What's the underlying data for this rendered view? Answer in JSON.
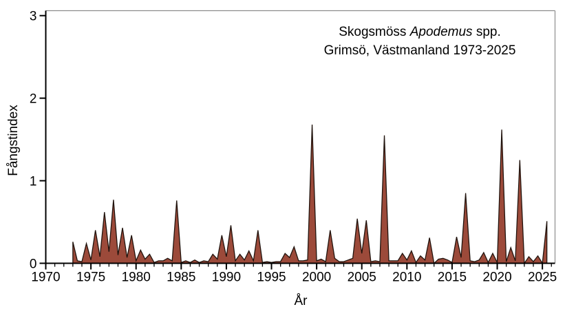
{
  "title": {
    "line1_prefix": "Skogsmöss",
    "line1_italic": "Apodemus",
    "line1_suffix": "spp.",
    "line2": "Grimsö, Västmanland 1973-2025"
  },
  "chart_data": {
    "type": "area",
    "title": "Skogsmöss Apodemus spp. Grimsö, Västmanland 1973-2025",
    "xlabel": "År",
    "ylabel": "Fångstindex",
    "xlim": [
      1970,
      2026.4
    ],
    "ylim": [
      0,
      3.06
    ],
    "x_major_ticks": [
      1970,
      1975,
      1980,
      1985,
      1990,
      1995,
      2000,
      2005,
      2010,
      2015,
      2020,
      2025
    ],
    "x_minor_tick_interval": 1,
    "y_ticks": [
      0,
      1,
      2,
      3
    ],
    "grid": false,
    "legend": "none",
    "fill_color": "#9C4A3A",
    "line_color": "#20130D",
    "axis_color": "#000000",
    "frame_color": "#8C8C8C",
    "note": "Two trapping sessions per year plotted at year +0.0 and +0.5; values read from pixels",
    "x_start": 1973,
    "x_step": 0.5,
    "y": [
      0.26,
      0.03,
      0.02,
      0.24,
      0.04,
      0.4,
      0.08,
      0.62,
      0.14,
      0.77,
      0.1,
      0.43,
      0.07,
      0.34,
      0.03,
      0.16,
      0.05,
      0.11,
      0.01,
      0.03,
      0.03,
      0.06,
      0.03,
      0.76,
      0.01,
      0.03,
      0.01,
      0.04,
      0.01,
      0.03,
      0.02,
      0.11,
      0.05,
      0.34,
      0.08,
      0.46,
      0.03,
      0.11,
      0.04,
      0.15,
      0.03,
      0.4,
      0.01,
      0.02,
      0.01,
      0.02,
      0.02,
      0.12,
      0.07,
      0.2,
      0.03,
      0.03,
      0.04,
      1.68,
      0.03,
      0.05,
      0.02,
      0.4,
      0.06,
      0.02,
      0.02,
      0.04,
      0.06,
      0.54,
      0.12,
      0.52,
      0.02,
      0.03,
      0.02,
      1.55,
      0.03,
      0.03,
      0.03,
      0.12,
      0.04,
      0.15,
      0.01,
      0.09,
      0.04,
      0.31,
      0.0,
      0.05,
      0.06,
      0.04,
      0.01,
      0.32,
      0.07,
      0.85,
      0.03,
      0.02,
      0.04,
      0.13,
      0.01,
      0.12,
      0.01,
      1.62,
      0.02,
      0.19,
      0.03,
      1.25,
      0.0,
      0.08,
      0.02,
      0.09,
      0.0,
      0.51
    ]
  }
}
